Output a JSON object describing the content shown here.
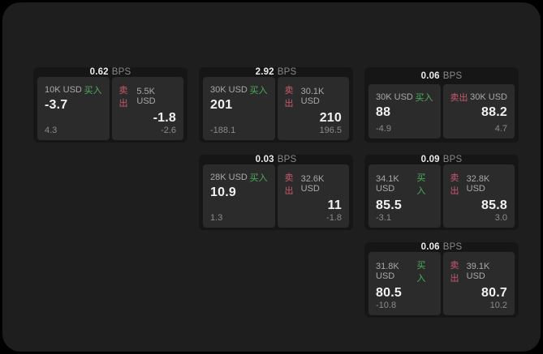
{
  "labels": {
    "bps": "BPS",
    "buy": "买入",
    "sell": "卖出"
  },
  "colors": {
    "surface": "#1e1e1f",
    "card": "#161617",
    "panel": "#2b2b2c",
    "buy_green": "#4fae5c",
    "sell_red": "#c75a6b"
  },
  "cards": [
    {
      "bps": "0.62",
      "buy": {
        "size": "10K USD",
        "price": "-3.7",
        "delta": "4.3"
      },
      "sell": {
        "size": "5.5K USD",
        "price": "-1.8",
        "delta": "-2.6"
      }
    },
    {
      "bps": "2.92",
      "buy": {
        "size": "30K USD",
        "price": "201",
        "delta": "-188.1"
      },
      "sell": {
        "size": "30.1K USD",
        "price": "210",
        "delta": "196.5"
      }
    },
    {
      "bps": "0.06",
      "buy": {
        "size": "30K USD",
        "price": "88",
        "delta": "-4.9"
      },
      "sell": {
        "size": "30K USD",
        "price": "88.2",
        "delta": "4.7"
      }
    },
    {
      "bps": "0.03",
      "buy": {
        "size": "28K USD",
        "price": "10.9",
        "delta": "1.3"
      },
      "sell": {
        "size": "32.6K USD",
        "price": "11",
        "delta": "-1.8"
      }
    },
    {
      "bps": "0.09",
      "buy": {
        "size": "34.1K USD",
        "price": "85.5",
        "delta": "-3.1"
      },
      "sell": {
        "size": "32.8K USD",
        "price": "85.8",
        "delta": "3.0"
      }
    },
    {
      "bps": "0.06",
      "buy": {
        "size": "31.8K USD",
        "price": "80.5",
        "delta": "-10.8"
      },
      "sell": {
        "size": "39.1K USD",
        "price": "80.7",
        "delta": "10.2"
      }
    }
  ]
}
